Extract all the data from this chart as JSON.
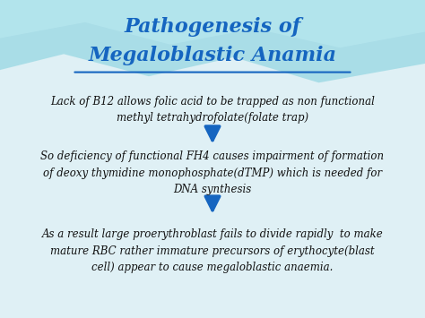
{
  "title_line1": "Pathogenesis of",
  "title_line2": "Megaloblastic Anamia",
  "title_color": "#1565C0",
  "background_top_color": "#aee6ef",
  "background_color": "#f0f8ff",
  "arrow_color": "#1565C0",
  "block1": "Lack of B12 allows folic acid to be trapped as non functional\nmethyl tetrahydrofolate(folate trap)",
  "block2": "So deficiency of functional FH4 causes impairment of formation\nof deoxy thymidine monophosphate(dTMP) which is needed for\nDNA synthesis",
  "block3": "As a result large proerythroblast fails to divide rapidly  to make\nmature RBC rather immature precursors of erythocyte(blast\ncell) appear to cause megaloblastic anaemia.",
  "figsize": [
    4.74,
    3.55
  ],
  "dpi": 100
}
